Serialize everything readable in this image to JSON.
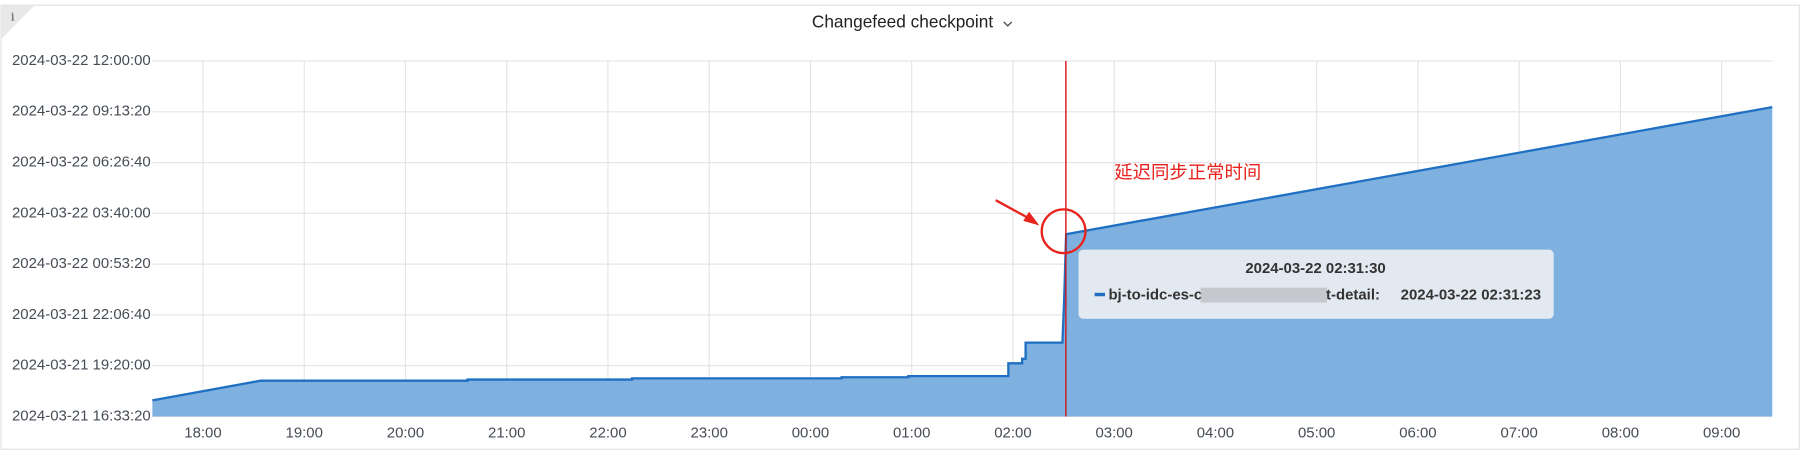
{
  "chart_data": {
    "type": "area",
    "title": "Changefeed checkpoint",
    "info_icon": "i",
    "annotation": "延迟同步正常时间",
    "x": [
      1711042200,
      1711046045,
      1711053409,
      1711053409,
      1711059260,
      1711059260,
      1711066705,
      1711066705,
      1711069078,
      1711069078,
      1711072637,
      1711072637,
      1711073128,
      1711073128,
      1711073251,
      1711073251,
      1711074560,
      1711074620,
      1711074690,
      1711099800
    ],
    "series": [
      {
        "color": "#1f6fc2",
        "fill": "#7eb1df",
        "values": [
          1711041982,
          1711045845,
          1711045845,
          1711046073,
          1711046073,
          1711046300,
          1711046300,
          1711046527,
          1711046527,
          1711046755,
          1711046755,
          1711049255,
          1711049255,
          1711050164,
          1711050164,
          1711053345,
          1711053345,
          1711061755,
          1711074683,
          1711099709
        ]
      }
    ],
    "xlim": [
      1711042200,
      1711099800
    ],
    "xticks": [
      {
        "value": 1711044000,
        "label": "18:00"
      },
      {
        "value": 1711047600,
        "label": "19:00"
      },
      {
        "value": 1711051200,
        "label": "20:00"
      },
      {
        "value": 1711054800,
        "label": "21:00"
      },
      {
        "value": 1711058400,
        "label": "22:00"
      },
      {
        "value": 1711062000,
        "label": "23:00"
      },
      {
        "value": 1711065600,
        "label": "00:00"
      },
      {
        "value": 1711069200,
        "label": "01:00"
      },
      {
        "value": 1711072800,
        "label": "02:00"
      },
      {
        "value": 1711076400,
        "label": "03:00"
      },
      {
        "value": 1711080000,
        "label": "04:00"
      },
      {
        "value": 1711083600,
        "label": "05:00"
      },
      {
        "value": 1711087200,
        "label": "06:00"
      },
      {
        "value": 1711090800,
        "label": "07:00"
      },
      {
        "value": 1711094400,
        "label": "08:00"
      },
      {
        "value": 1711098000,
        "label": "09:00"
      }
    ],
    "ylim": [
      1711038800,
      1711108800
    ],
    "yticks": [
      {
        "value": 1711038800,
        "label": "2024-03-21 16:33:20"
      },
      {
        "value": 1711048800,
        "label": "2024-03-21 19:20:00"
      },
      {
        "value": 1711058800,
        "label": "2024-03-21 22:06:40"
      },
      {
        "value": 1711068800,
        "label": "2024-03-22 00:53:20"
      },
      {
        "value": 1711078800,
        "label": "2024-03-22 03:40:00"
      },
      {
        "value": 1711088800,
        "label": "2024-03-22 06:26:40"
      },
      {
        "value": 1711098800,
        "label": "2024-03-22 09:13:20"
      },
      {
        "value": 1711108800,
        "label": "2024-03-22 12:00:00"
      }
    ],
    "grid": true,
    "tooltip": {
      "time": "2024-03-22 02:31:30",
      "series_label_start": "bj-to-idc-es-c",
      "series_label_end": "t-detail:",
      "value": "2024-03-22 02:31:23"
    }
  }
}
